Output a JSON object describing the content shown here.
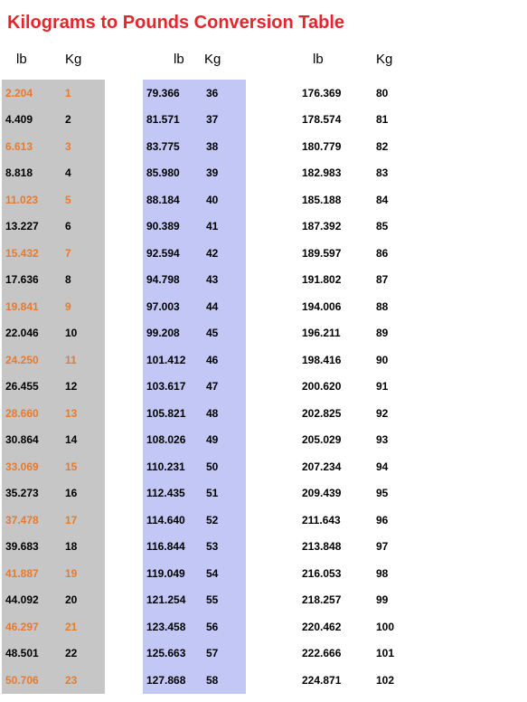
{
  "title": "Kilograms to Pounds Conversion Table",
  "headers": {
    "lb": "lb",
    "kg": "Kg"
  },
  "colors": {
    "title": "#e6242c",
    "highlight_text": "#e67a2e",
    "col1_bg": "#c6c6c6",
    "col2_bg": "#c2c7f5",
    "col3_bg": "#ffffff",
    "text": "#000000"
  },
  "column1": [
    {
      "lb": "2.204",
      "kg": "1",
      "hl": true
    },
    {
      "lb": "4.409",
      "kg": "2",
      "hl": false
    },
    {
      "lb": "6.613",
      "kg": "3",
      "hl": true
    },
    {
      "lb": "8.818",
      "kg": "4",
      "hl": false
    },
    {
      "lb": "11.023",
      "kg": "5",
      "hl": true
    },
    {
      "lb": "13.227",
      "kg": "6",
      "hl": false
    },
    {
      "lb": "15.432",
      "kg": "7",
      "hl": true
    },
    {
      "lb": "17.636",
      "kg": "8",
      "hl": false
    },
    {
      "lb": "19.841",
      "kg": "9",
      "hl": true
    },
    {
      "lb": "22.046",
      "kg": "10",
      "hl": false
    },
    {
      "lb": "24.250",
      "kg": "11",
      "hl": true
    },
    {
      "lb": "26.455",
      "kg": "12",
      "hl": false
    },
    {
      "lb": "28.660",
      "kg": "13",
      "hl": true
    },
    {
      "lb": "30.864",
      "kg": "14",
      "hl": false
    },
    {
      "lb": "33.069",
      "kg": "15",
      "hl": true
    },
    {
      "lb": "35.273",
      "kg": "16",
      "hl": false
    },
    {
      "lb": "37.478",
      "kg": "17",
      "hl": true
    },
    {
      "lb": "39.683",
      "kg": "18",
      "hl": false
    },
    {
      "lb": "41.887",
      "kg": "19",
      "hl": true
    },
    {
      "lb": "44.092",
      "kg": "20",
      "hl": false
    },
    {
      "lb": "46.297",
      "kg": "21",
      "hl": true
    },
    {
      "lb": "48.501",
      "kg": "22",
      "hl": false
    },
    {
      "lb": "50.706",
      "kg": "23",
      "hl": true
    }
  ],
  "column2": [
    {
      "lb": "79.366",
      "kg": "36"
    },
    {
      "lb": "81.571",
      "kg": "37"
    },
    {
      "lb": "83.775",
      "kg": "38"
    },
    {
      "lb": "85.980",
      "kg": "39"
    },
    {
      "lb": "88.184",
      "kg": "40"
    },
    {
      "lb": "90.389",
      "kg": "41"
    },
    {
      "lb": "92.594",
      "kg": "42"
    },
    {
      "lb": "94.798",
      "kg": "43"
    },
    {
      "lb": "97.003",
      "kg": "44"
    },
    {
      "lb": "99.208",
      "kg": "45"
    },
    {
      "lb": "101.412",
      "kg": "46"
    },
    {
      "lb": "103.617",
      "kg": "47"
    },
    {
      "lb": "105.821",
      "kg": "48"
    },
    {
      "lb": "108.026",
      "kg": "49"
    },
    {
      "lb": "110.231",
      "kg": "50"
    },
    {
      "lb": "112.435",
      "kg": "51"
    },
    {
      "lb": "114.640",
      "kg": "52"
    },
    {
      "lb": "116.844",
      "kg": "53"
    },
    {
      "lb": "119.049",
      "kg": "54"
    },
    {
      "lb": "121.254",
      "kg": "55"
    },
    {
      "lb": "123.458",
      "kg": "56"
    },
    {
      "lb": "125.663",
      "kg": "57"
    },
    {
      "lb": "127.868",
      "kg": "58"
    }
  ],
  "column3": [
    {
      "lb": "176.369",
      "kg": "80"
    },
    {
      "lb": "178.574",
      "kg": "81"
    },
    {
      "lb": "180.779",
      "kg": "82"
    },
    {
      "lb": "182.983",
      "kg": "83"
    },
    {
      "lb": "185.188",
      "kg": "84"
    },
    {
      "lb": "187.392",
      "kg": "85"
    },
    {
      "lb": "189.597",
      "kg": "86"
    },
    {
      "lb": "191.802",
      "kg": "87"
    },
    {
      "lb": "194.006",
      "kg": "88"
    },
    {
      "lb": "196.211",
      "kg": "89"
    },
    {
      "lb": "198.416",
      "kg": "90"
    },
    {
      "lb": "200.620",
      "kg": "91"
    },
    {
      "lb": "202.825",
      "kg": "92"
    },
    {
      "lb": "205.029",
      "kg": "93"
    },
    {
      "lb": "207.234",
      "kg": "94"
    },
    {
      "lb": "209.439",
      "kg": "95"
    },
    {
      "lb": "211.643",
      "kg": "96"
    },
    {
      "lb": "213.848",
      "kg": "97"
    },
    {
      "lb": "216.053",
      "kg": "98"
    },
    {
      "lb": "218.257",
      "kg": "99"
    },
    {
      "lb": "220.462",
      "kg": "100"
    },
    {
      "lb": "222.666",
      "kg": "101"
    },
    {
      "lb": "224.871",
      "kg": "102"
    }
  ]
}
